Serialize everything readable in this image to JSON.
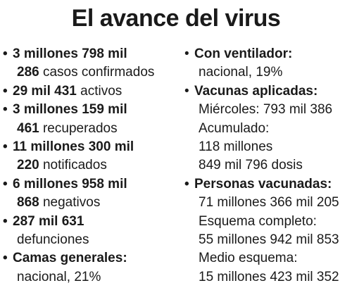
{
  "title": "El avance del virus",
  "bullet": "•",
  "left": {
    "confirmed": {
      "line1": "3 millones 798 mil",
      "num": "286",
      "label": " casos confirmados"
    },
    "active": {
      "num": "29 mil 431",
      "label": " activos"
    },
    "recovered": {
      "line1": "3 millones 159 mil",
      "num": "461",
      "label": " recuperados"
    },
    "notified": {
      "line1": "11 millones 300 mil",
      "num": "220",
      "label": " notificados"
    },
    "negative": {
      "line1": "6 millones 958 mil",
      "num": "868",
      "label": " negativos"
    },
    "deaths": {
      "line1": "287 mil 631",
      "label": "defunciones"
    },
    "general_beds": {
      "heading": "Camas generales:",
      "value": "nacional, 21%"
    }
  },
  "right": {
    "ventilator": {
      "heading": "Con ventilador:",
      "value": "nacional, 19%"
    },
    "vaccines_applied": {
      "heading": "Vacunas aplicadas:",
      "wednesday": "Miércoles: 793 mil 386",
      "accum_label": "Acumulado:",
      "accum_1": "118 millones",
      "accum_2": "849 mil 796 dosis"
    },
    "people_vaccinated": {
      "heading": "Personas vacunadas:",
      "total": "71 millones 366 mil 205",
      "complete_label": "Esquema completo:",
      "complete_value": "55 millones 942 mil 853",
      "half_label": "Medio esquema:",
      "half_value": "15 millones 423 mil 352"
    }
  }
}
